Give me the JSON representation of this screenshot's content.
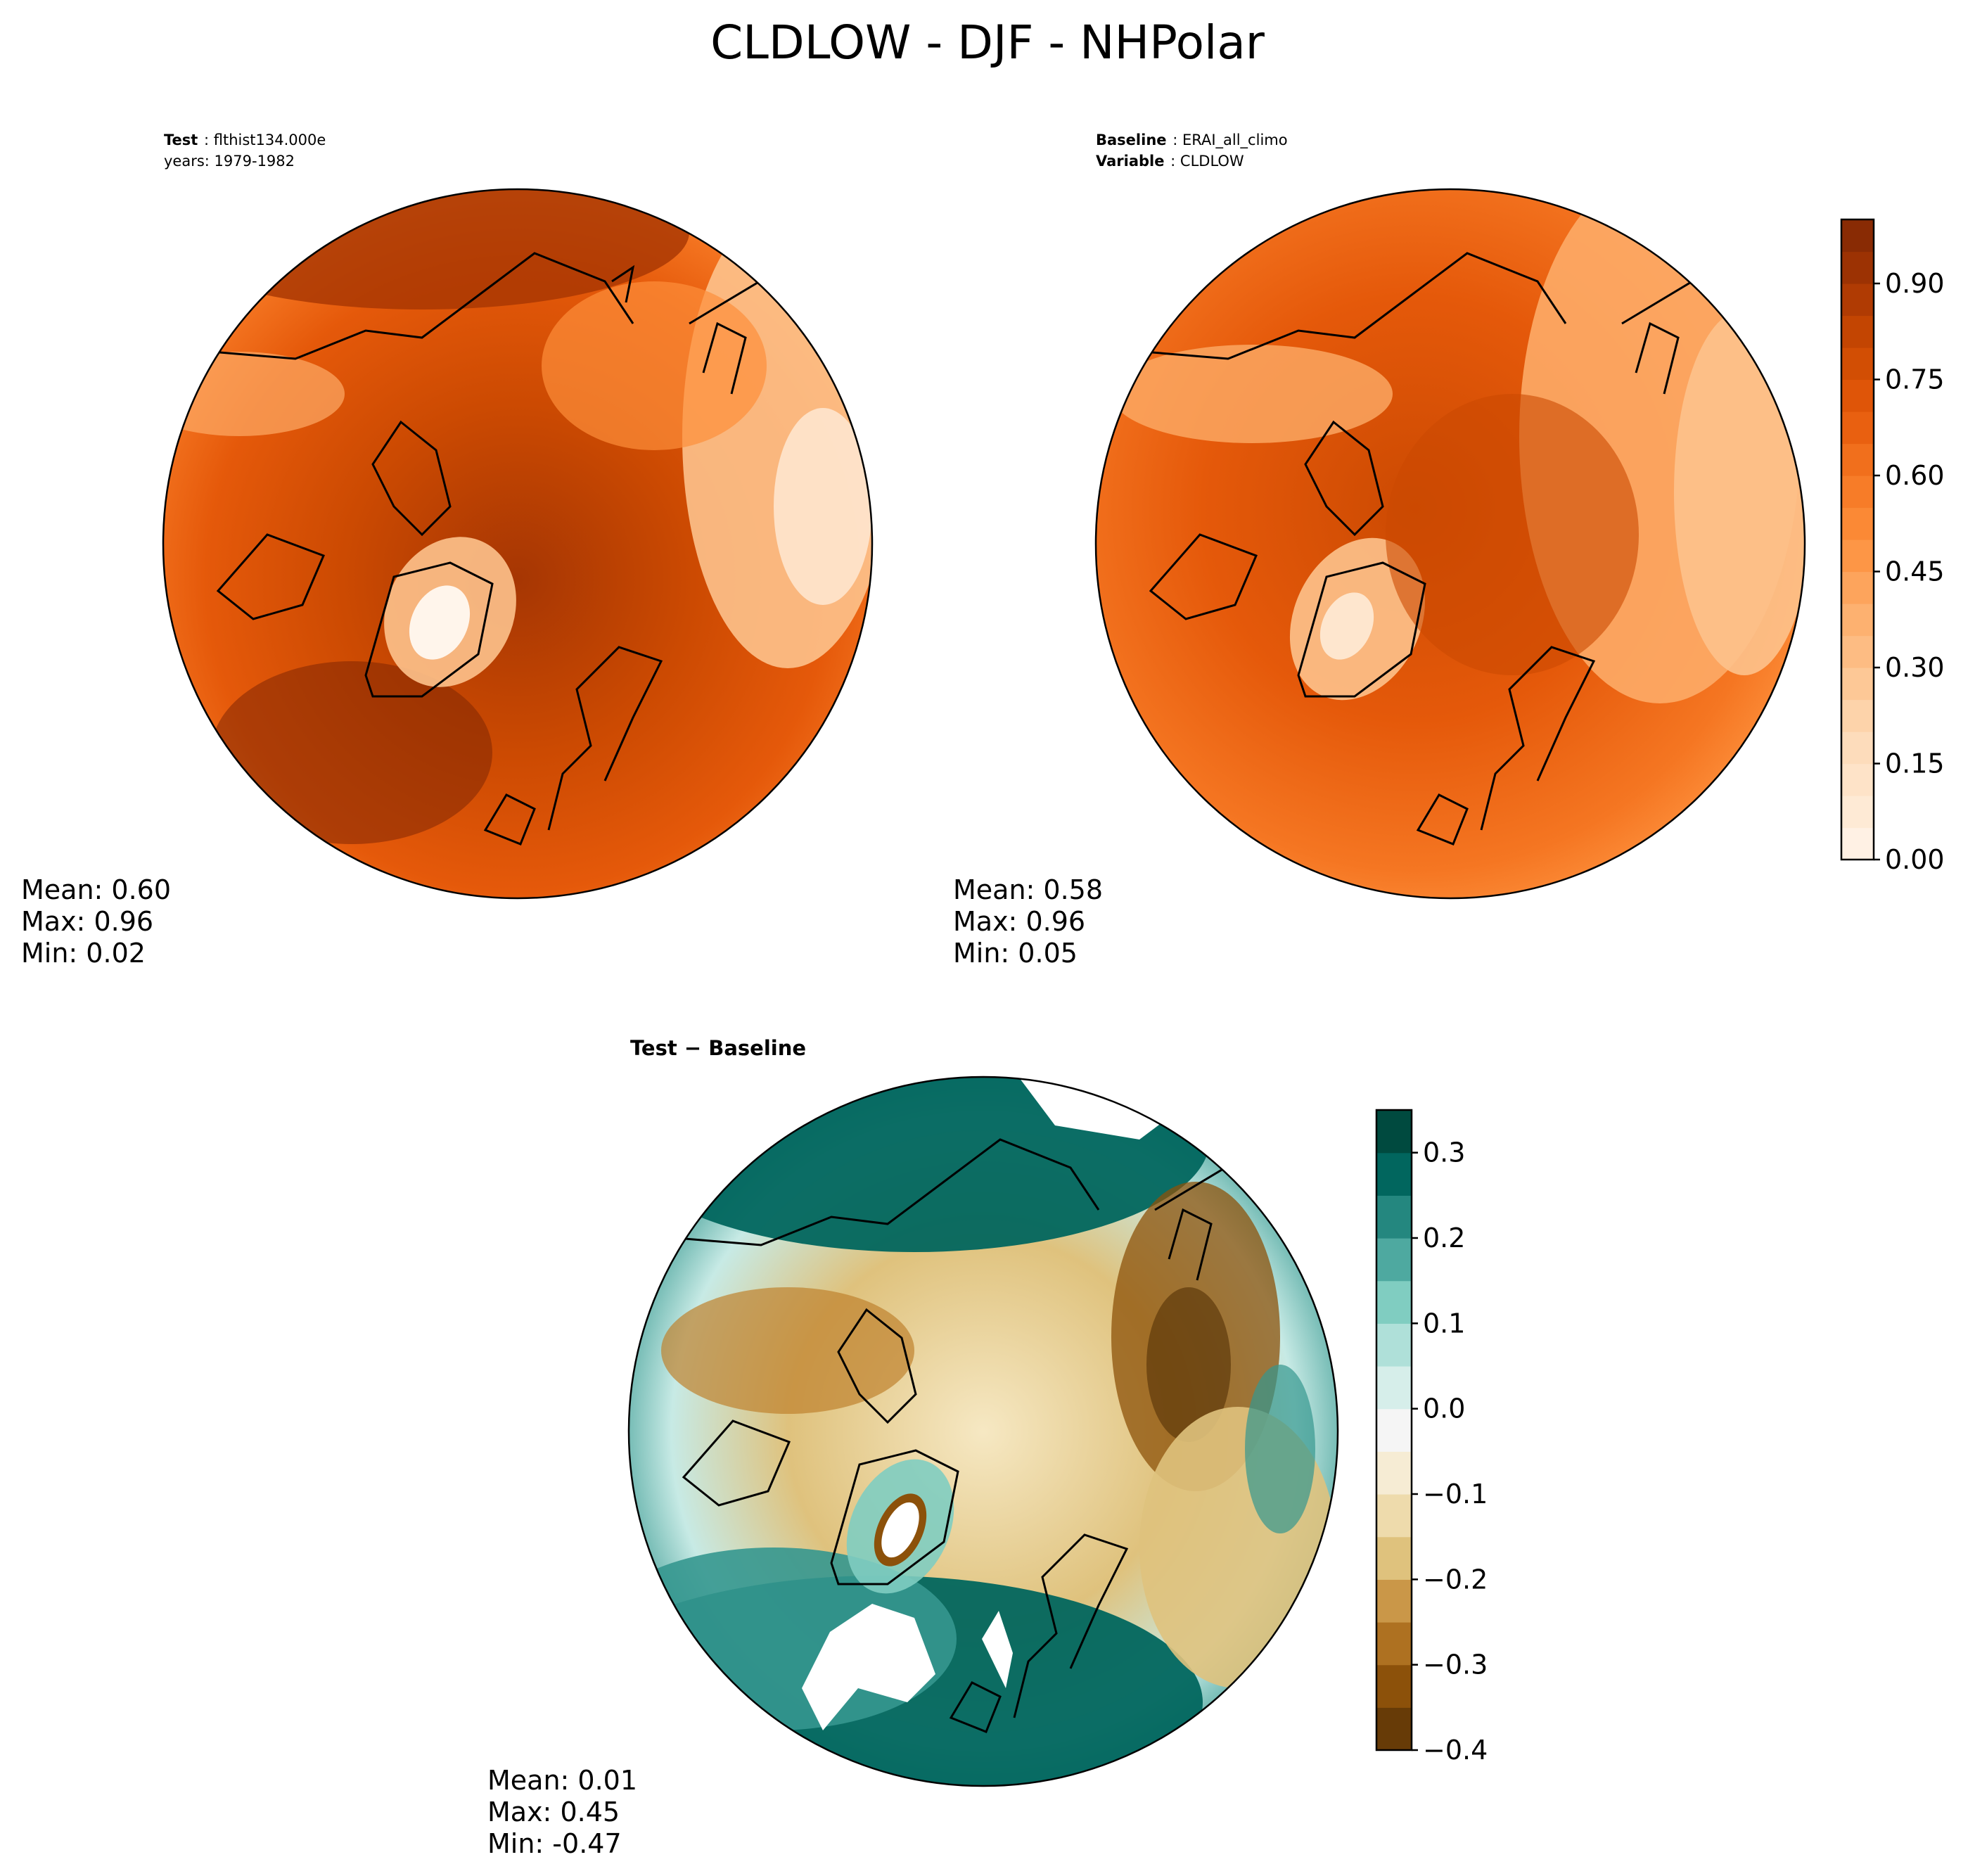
{
  "figure": {
    "title": "CLDLOW - DJF - NHPolar"
  },
  "panels": {
    "test": {
      "label_key": "Test",
      "label_value": "flthist134.000e",
      "years_line": "years: 1979-1982",
      "mean": "Mean:  0.60",
      "max": "Max:  0.96",
      "min": "Min:  0.02"
    },
    "baseline": {
      "label_key": "Baseline",
      "label_value": "ERAI_all_climo",
      "variable_key": "Variable",
      "variable_value": "CLDLOW",
      "mean": "Mean:  0.58",
      "max": "Max:  0.96",
      "min": "Min:  0.05"
    },
    "diff": {
      "title": "Test − Baseline",
      "mean": "Mean:  0.01",
      "max": "Max:  0.45",
      "min": "Min: -0.47"
    }
  },
  "chart_data": [
    {
      "type": "heatmap",
      "panel": "test",
      "projection": "north polar stereographic",
      "stats": {
        "mean": 0.6,
        "max": 0.96,
        "min": 0.02
      },
      "colormap": "Oranges",
      "colorbar_ticks": [
        "0.00",
        "0.15",
        "0.30",
        "0.45",
        "0.60",
        "0.75",
        "0.90"
      ],
      "colorbar_range": [
        0.0,
        1.0
      ]
    },
    {
      "type": "heatmap",
      "panel": "baseline",
      "projection": "north polar stereographic",
      "stats": {
        "mean": 0.58,
        "max": 0.96,
        "min": 0.05
      },
      "colormap": "Oranges",
      "colorbar_ticks": [
        "0.00",
        "0.15",
        "0.30",
        "0.45",
        "0.60",
        "0.75",
        "0.90"
      ],
      "colorbar_range": [
        0.0,
        1.0
      ]
    },
    {
      "type": "heatmap",
      "panel": "diff",
      "projection": "north polar stereographic",
      "stats": {
        "mean": 0.01,
        "max": 0.45,
        "min": -0.47
      },
      "colormap": "BrBG",
      "colorbar_ticks": [
        "−0.4",
        "−0.3",
        "−0.2",
        "−0.1",
        "0.0",
        "0.1",
        "0.2",
        "0.3"
      ],
      "colorbar_range": [
        -0.4,
        0.35
      ]
    }
  ],
  "colors": {
    "oranges": [
      "#fff5eb",
      "#fee6ce",
      "#fdd9b4",
      "#fdc28c",
      "#fdab67",
      "#fd8f3b",
      "#f57622",
      "#e5590a",
      "#cc4a02",
      "#a63603",
      "#7f2704"
    ],
    "brbg": [
      "#543005",
      "#8c510a",
      "#bf812d",
      "#dfc27d",
      "#f6e8c3",
      "#f5f5f5",
      "#c7eae5",
      "#80cdc1",
      "#35978f",
      "#01665e",
      "#003c30"
    ]
  }
}
